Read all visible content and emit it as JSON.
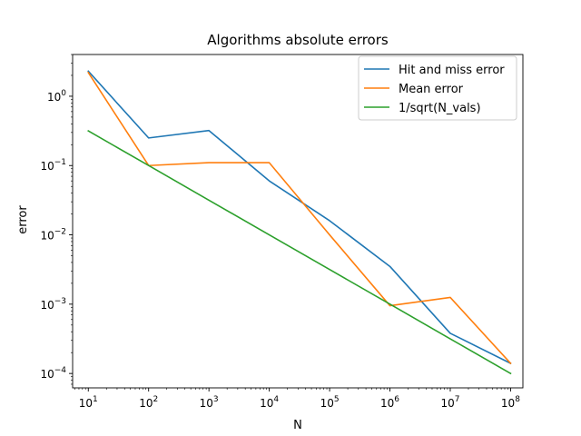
{
  "chart_data": {
    "type": "line",
    "title": "Algorithms absolute errors",
    "xlabel": "N",
    "ylabel": "error",
    "xscale": "log",
    "yscale": "log",
    "xlim": [
      5.5,
      160000000.0
    ],
    "ylim": [
      6.2e-05,
      4.0
    ],
    "grid": false,
    "legend_position": "top-right",
    "x": [
      10,
      100,
      1000,
      10000,
      100000,
      1000000,
      10000000,
      100000000
    ],
    "x_tick_labels": [
      {
        "base": "10",
        "exp": "1"
      },
      {
        "base": "10",
        "exp": "2"
      },
      {
        "base": "10",
        "exp": "3"
      },
      {
        "base": "10",
        "exp": "4"
      },
      {
        "base": "10",
        "exp": "5"
      },
      {
        "base": "10",
        "exp": "6"
      },
      {
        "base": "10",
        "exp": "7"
      },
      {
        "base": "10",
        "exp": "8"
      }
    ],
    "y_tick_labels": [
      {
        "base": "10",
        "exp": "0"
      },
      {
        "base": "10",
        "exp": "−1"
      },
      {
        "base": "10",
        "exp": "−2"
      },
      {
        "base": "10",
        "exp": "−3"
      },
      {
        "base": "10",
        "exp": "−4"
      }
    ],
    "series": [
      {
        "name": "Hit and miss error",
        "color": "#1f77b4",
        "values": [
          2.3,
          0.25,
          0.32,
          0.06,
          0.016,
          0.0035,
          0.00038,
          0.00014
        ]
      },
      {
        "name": "Mean error",
        "color": "#ff7f0e",
        "values": [
          2.2,
          0.1,
          0.11,
          0.11,
          0.01,
          0.00095,
          0.00125,
          0.00014
        ]
      },
      {
        "name": "1/sqrt(N_vals)",
        "color": "#2ca02c",
        "values": [
          0.316,
          0.1,
          0.0316,
          0.01,
          0.00316,
          0.001,
          0.000316,
          0.0001
        ]
      }
    ]
  }
}
